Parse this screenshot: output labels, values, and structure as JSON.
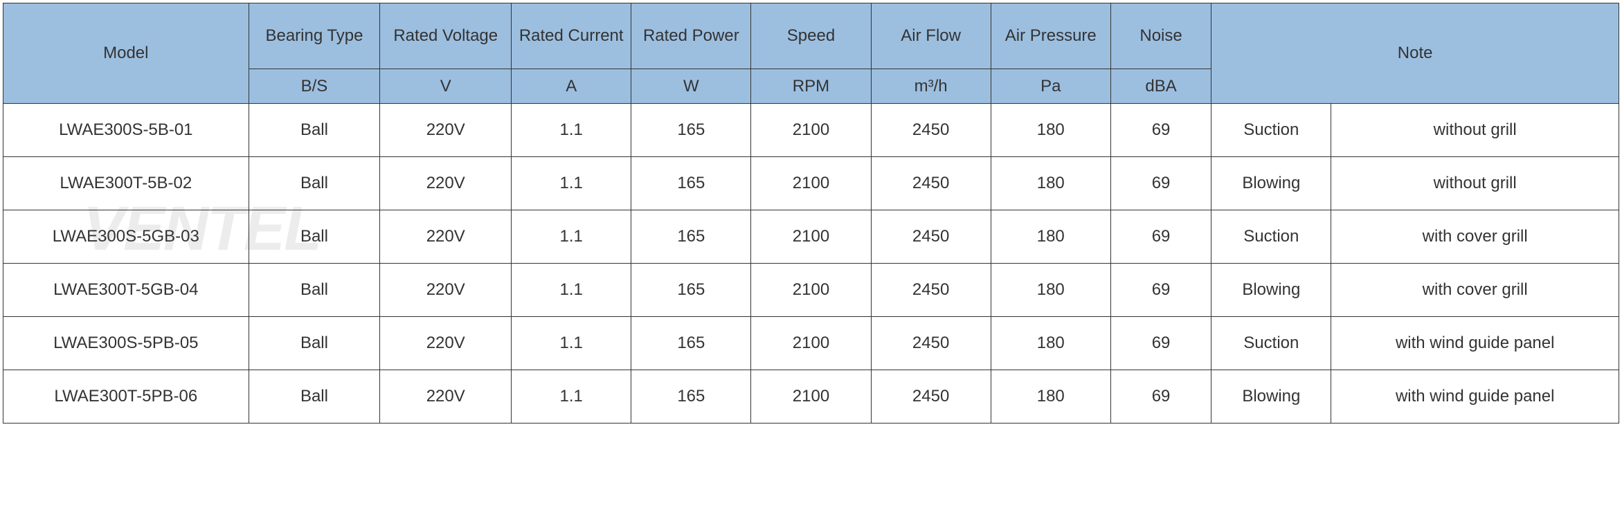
{
  "watermark": "VENTEL",
  "header_bg_color": "#9cbfe0",
  "border_color": "#333333",
  "text_color": "#333333",
  "font_size_header": 24,
  "font_size_body": 24,
  "headers": {
    "model": "Model",
    "bearing_type": "Bearing Type",
    "rated_voltage": "Rated Voltage",
    "rated_current": "Rated Current",
    "rated_power": "Rated Power",
    "speed": "Speed",
    "air_flow": "Air Flow",
    "air_pressure": "Air Pressure",
    "noise": "Noise",
    "note": "Note"
  },
  "units": {
    "bearing_type": "B/S",
    "rated_voltage": "V",
    "rated_current": "A",
    "rated_power": "W",
    "speed": "RPM",
    "air_flow": "m³/h",
    "air_pressure": "Pa",
    "noise": "dBA"
  },
  "rows": [
    {
      "model": "LWAE300S-5B-01",
      "bearing": "Ball",
      "voltage": "220V",
      "current": "1.1",
      "power": "165",
      "speed": "2100",
      "airflow": "2450",
      "pressure": "180",
      "noise": "69",
      "note1": "Suction",
      "note2": "without grill"
    },
    {
      "model": "LWAE300T-5B-02",
      "bearing": "Ball",
      "voltage": "220V",
      "current": "1.1",
      "power": "165",
      "speed": "2100",
      "airflow": "2450",
      "pressure": "180",
      "noise": "69",
      "note1": "Blowing",
      "note2": "without grill"
    },
    {
      "model": "LWAE300S-5GB-03",
      "bearing": "Ball",
      "voltage": "220V",
      "current": "1.1",
      "power": "165",
      "speed": "2100",
      "airflow": "2450",
      "pressure": "180",
      "noise": "69",
      "note1": "Suction",
      "note2": "with cover grill"
    },
    {
      "model": "LWAE300T-5GB-04",
      "bearing": "Ball",
      "voltage": "220V",
      "current": "1.1",
      "power": "165",
      "speed": "2100",
      "airflow": "2450",
      "pressure": "180",
      "noise": "69",
      "note1": "Blowing",
      "note2": "with cover grill"
    },
    {
      "model": "LWAE300S-5PB-05",
      "bearing": "Ball",
      "voltage": "220V",
      "current": "1.1",
      "power": "165",
      "speed": "2100",
      "airflow": "2450",
      "pressure": "180",
      "noise": "69",
      "note1": "Suction",
      "note2": "with wind guide panel"
    },
    {
      "model": "LWAE300T-5PB-06",
      "bearing": "Ball",
      "voltage": "220V",
      "current": "1.1",
      "power": "165",
      "speed": "2100",
      "airflow": "2450",
      "pressure": "180",
      "noise": "69",
      "note1": "Blowing",
      "note2": "with wind guide panel"
    }
  ]
}
